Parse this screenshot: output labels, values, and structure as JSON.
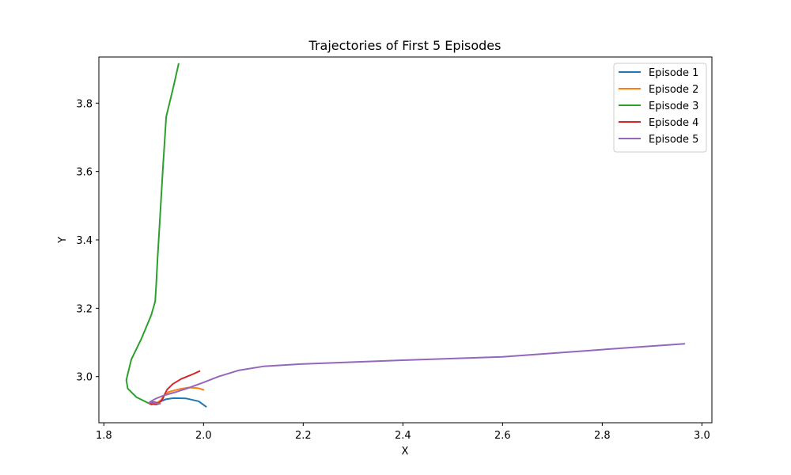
{
  "chart_data": {
    "type": "line",
    "title": "Trajectories of First 5 Episodes",
    "xlabel": "X",
    "ylabel": "Y",
    "xlim": [
      1.79,
      3.02
    ],
    "ylim": [
      2.865,
      3.935
    ],
    "xticks": [
      1.8,
      2.0,
      2.2,
      2.4,
      2.6,
      2.8,
      3.0
    ],
    "xtick_labels": [
      "1.8",
      "2.0",
      "2.2",
      "2.4",
      "2.6",
      "2.8",
      "3.0"
    ],
    "yticks": [
      3.0,
      3.2,
      3.4,
      3.6,
      3.8
    ],
    "ytick_labels": [
      "3.0",
      "3.2",
      "3.4",
      "3.6",
      "3.8"
    ],
    "grid": false,
    "legend": "top-right",
    "series": [
      {
        "name": "Episode 1",
        "color": "#1f77b4",
        "x": [
          2.005,
          1.99,
          1.965,
          1.94,
          1.925,
          1.915,
          1.905,
          1.895,
          1.89,
          1.895,
          1.905,
          1.912
        ],
        "y": [
          2.912,
          2.928,
          2.936,
          2.937,
          2.934,
          2.928,
          2.921,
          2.919,
          2.923,
          2.926,
          2.924,
          2.921
        ]
      },
      {
        "name": "Episode 2",
        "color": "#ff7f0e",
        "x": [
          2.0,
          1.99,
          1.97,
          1.95,
          1.93,
          1.92,
          1.915,
          1.905,
          1.895,
          1.89,
          1.895,
          1.905,
          1.912
        ],
        "y": [
          2.961,
          2.966,
          2.968,
          2.963,
          2.955,
          2.944,
          2.932,
          2.922,
          2.919,
          2.923,
          2.926,
          2.924,
          2.921
        ]
      },
      {
        "name": "Episode 3",
        "color": "#2ca02c",
        "x": [
          1.95,
          1.94,
          1.925,
          1.918,
          1.912,
          1.908,
          1.905,
          1.903,
          1.895,
          1.875,
          1.855,
          1.845,
          1.848,
          1.865,
          1.89,
          1.905,
          1.912
        ],
        "y": [
          3.915,
          3.85,
          3.76,
          3.6,
          3.45,
          3.35,
          3.27,
          3.22,
          3.18,
          3.11,
          3.05,
          2.99,
          2.965,
          2.94,
          2.922,
          2.918,
          2.921
        ]
      },
      {
        "name": "Episode 4",
        "color": "#d62728",
        "x": [
          1.992,
          1.975,
          1.955,
          1.938,
          1.927,
          1.922,
          1.918,
          1.912,
          1.905,
          1.895,
          1.89,
          1.895,
          1.905,
          1.912
        ],
        "y": [
          3.016,
          3.005,
          2.993,
          2.978,
          2.962,
          2.948,
          2.935,
          2.925,
          2.92,
          2.919,
          2.923,
          2.926,
          2.924,
          2.921
        ]
      },
      {
        "name": "Episode 5",
        "color": "#9467bd",
        "x": [
          2.965,
          2.8,
          2.6,
          2.4,
          2.2,
          2.12,
          2.07,
          2.03,
          2.0,
          1.97,
          1.945,
          1.92,
          1.905,
          1.895,
          1.89,
          1.895,
          1.905,
          1.912
        ],
        "y": [
          3.096,
          3.079,
          3.058,
          3.048,
          3.037,
          3.03,
          3.018,
          3.0,
          2.983,
          2.967,
          2.955,
          2.945,
          2.936,
          2.928,
          2.923,
          2.924,
          2.922,
          2.921
        ]
      }
    ]
  }
}
